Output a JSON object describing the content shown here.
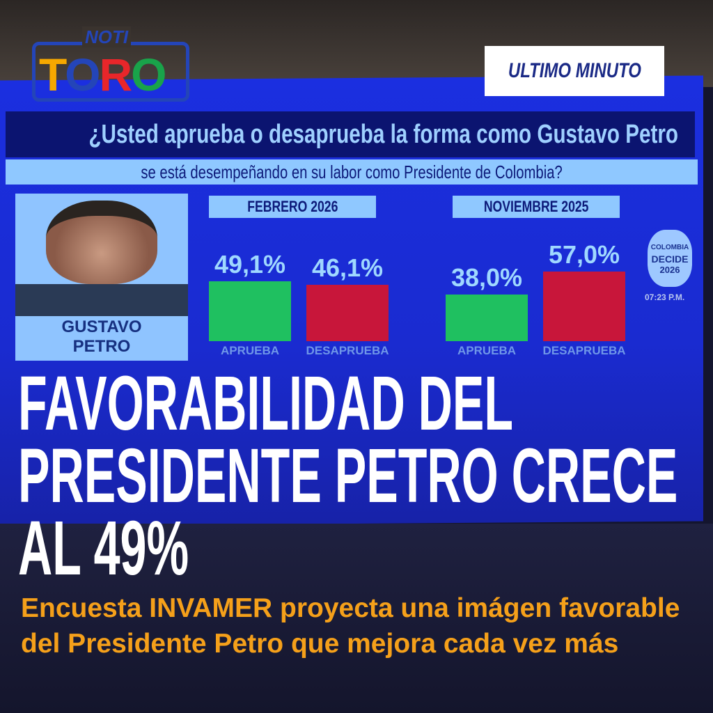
{
  "brand": {
    "logo_top": "NOTI",
    "logo_main": [
      "T",
      "O",
      "R",
      "O"
    ],
    "logo_colors": [
      "#f6a800",
      "#2445b8",
      "#e8262a",
      "#19a34a"
    ]
  },
  "badge": "ULTIMO MINUTO",
  "screen": {
    "question_line1": "¿Usted aprueba o desaprueba la forma como Gustavo Petro",
    "question_line2": "se está desempeñando en su labor como Presidente de Colombia?",
    "photo_caption": [
      "GUSTAVO",
      "PETRO"
    ],
    "network_logo": [
      "COLOMBIA",
      "DECIDE",
      "2026"
    ],
    "time": "07:23 P.M."
  },
  "chart_data": {
    "type": "bar",
    "groups": [
      {
        "period": "FEBRERO 2026",
        "bars": [
          {
            "label": "APRUEBA",
            "value": 49.1,
            "text": "49,1%",
            "color": "#1fc060"
          },
          {
            "label": "DESAPRUEBA",
            "value": 46.1,
            "text": "46,1%",
            "color": "#c8163a"
          }
        ]
      },
      {
        "period": "NOVIEMBRE 2025",
        "bars": [
          {
            "label": "APRUEBA",
            "value": 38.0,
            "text": "38,0%",
            "color": "#1fc060"
          },
          {
            "label": "DESAPRUEBA",
            "value": 57.0,
            "text": "57,0%",
            "color": "#c8163a"
          }
        ]
      }
    ]
  },
  "headline": [
    "FAVORABILIDAD DEL",
    "PRESIDENTE PETRO CRECE",
    "AL 49%"
  ],
  "subheadline": "Encuesta INVAMER proyecta una imágen favorable del Presidente Petro que mejora cada vez más"
}
